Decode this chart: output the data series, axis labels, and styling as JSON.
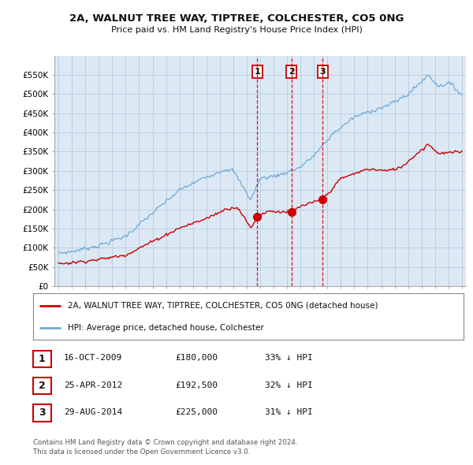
{
  "title": "2A, WALNUT TREE WAY, TIPTREE, COLCHESTER, CO5 0NG",
  "subtitle": "Price paid vs. HM Land Registry's House Price Index (HPI)",
  "hpi_color": "#6fa8d4",
  "price_color": "#cc0000",
  "background_color": "#ffffff",
  "plot_bg_color": "#dce9f5",
  "grid_color": "#b8cfe0",
  "ylim": [
    0,
    600000
  ],
  "yticks": [
    0,
    50000,
    100000,
    150000,
    200000,
    250000,
    300000,
    350000,
    400000,
    450000,
    500000,
    550000
  ],
  "transactions": [
    {
      "num": 1,
      "date": "16-OCT-2009",
      "price": 180000,
      "pct": "33% ↓ HPI",
      "x": 2009.79
    },
    {
      "num": 2,
      "date": "25-APR-2012",
      "price": 192500,
      "pct": "32% ↓ HPI",
      "x": 2012.32
    },
    {
      "num": 3,
      "date": "29-AUG-2014",
      "price": 225000,
      "pct": "31% ↓ HPI",
      "x": 2014.66
    }
  ],
  "legend_label_red": "2A, WALNUT TREE WAY, TIPTREE, COLCHESTER, CO5 0NG (detached house)",
  "legend_label_blue": "HPI: Average price, detached house, Colchester",
  "footer1": "Contains HM Land Registry data © Crown copyright and database right 2024.",
  "footer2": "This data is licensed under the Open Government Licence v3.0."
}
